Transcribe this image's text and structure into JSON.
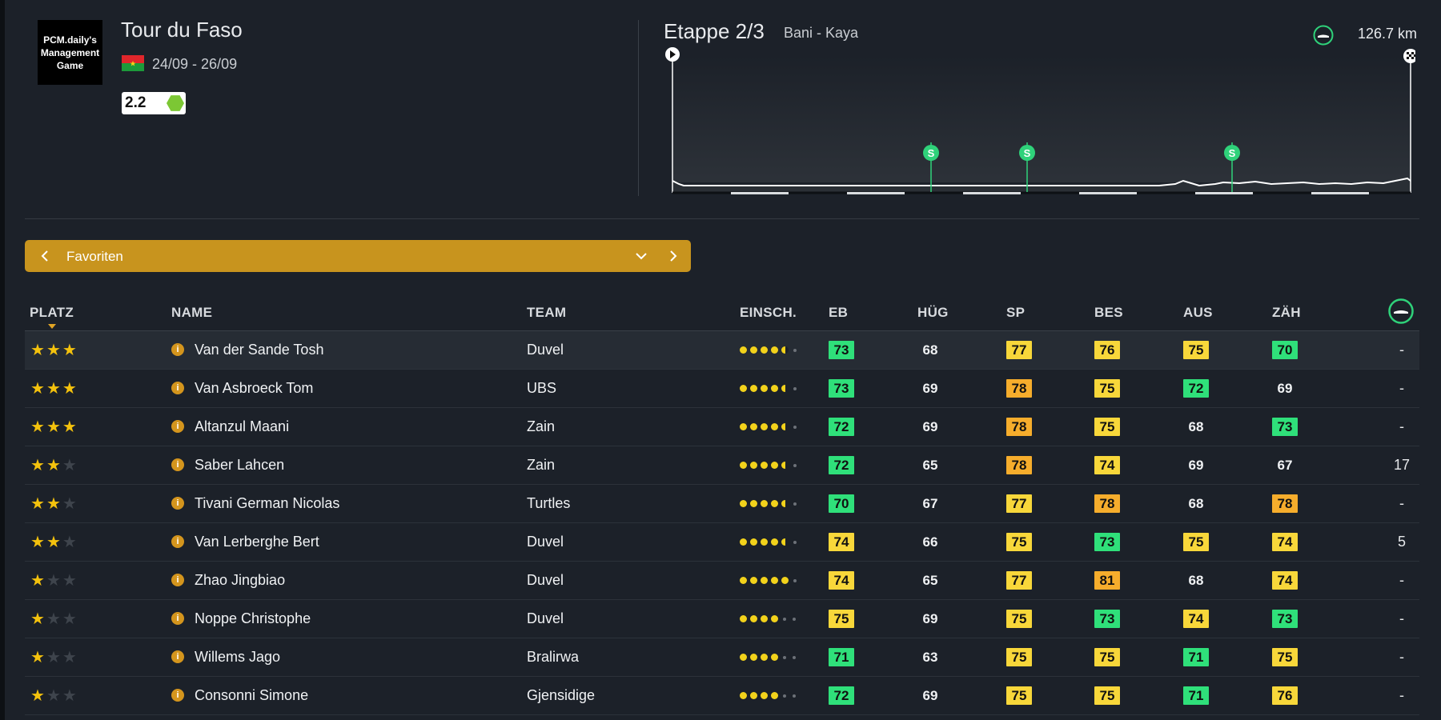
{
  "race": {
    "logo_text": "PCM.daily's Management Game",
    "title": "Tour du Faso",
    "dates": "24/09 - 26/09",
    "category": "2.2"
  },
  "stage": {
    "title": "Etappe 2/3",
    "route": "Bani - Kaya",
    "distance": "126.7 km",
    "type_icon": "flat-stage-icon",
    "sprint_marker": "S"
  },
  "filter": {
    "label": "Favoriten"
  },
  "table": {
    "headers": {
      "platz": "PLATZ",
      "name": "NAME",
      "team": "TEAM",
      "einsch": "EINSCH.",
      "eb": "EB",
      "hug": "HÜG",
      "sp": "SP",
      "bes": "BES",
      "aus": "AUS",
      "zah": "ZÄH"
    },
    "info_glyph": "i",
    "rows": [
      {
        "stars": 3,
        "name": "Van der Sande Tosh",
        "team": "Duvel",
        "dots": 4.5,
        "eb": "73",
        "hug": "68",
        "sp": "77",
        "bes": "76",
        "aus": "75",
        "zah": "70",
        "rank": "-"
      },
      {
        "stars": 3,
        "name": "Van Asbroeck Tom",
        "team": "UBS",
        "dots": 4.5,
        "eb": "73",
        "hug": "69",
        "sp": "78",
        "bes": "75",
        "aus": "72",
        "zah": "69",
        "rank": "-"
      },
      {
        "stars": 3,
        "name": "Altanzul Maani",
        "team": "Zain",
        "dots": 4.5,
        "eb": "72",
        "hug": "69",
        "sp": "78",
        "bes": "75",
        "aus": "68",
        "zah": "73",
        "rank": "-"
      },
      {
        "stars": 2,
        "name": "Saber Lahcen",
        "team": "Zain",
        "dots": 4.5,
        "eb": "72",
        "hug": "65",
        "sp": "78",
        "bes": "74",
        "aus": "69",
        "zah": "67",
        "rank": "17"
      },
      {
        "stars": 2,
        "name": "Tivani German Nicolas",
        "team": "Turtles",
        "dots": 4.5,
        "eb": "70",
        "hug": "67",
        "sp": "77",
        "bes": "78",
        "aus": "68",
        "zah": "78",
        "rank": "-"
      },
      {
        "stars": 2,
        "name": "Van Lerberghe Bert",
        "team": "Duvel",
        "dots": 4.5,
        "eb": "74",
        "hug": "66",
        "sp": "75",
        "bes": "73",
        "aus": "75",
        "zah": "74",
        "rank": "5"
      },
      {
        "stars": 1,
        "name": "Zhao Jingbiao",
        "team": "Duvel",
        "dots": 5,
        "eb": "74",
        "hug": "65",
        "sp": "77",
        "bes": "81",
        "aus": "68",
        "zah": "74",
        "rank": "-"
      },
      {
        "stars": 1,
        "name": "Noppe Christophe",
        "team": "Duvel",
        "dots": 4,
        "eb": "75",
        "hug": "69",
        "sp": "75",
        "bes": "73",
        "aus": "74",
        "zah": "73",
        "rank": "-"
      },
      {
        "stars": 1,
        "name": "Willems Jago",
        "team": "Bralirwa",
        "dots": 4,
        "eb": "71",
        "hug": "63",
        "sp": "75",
        "bes": "75",
        "aus": "71",
        "zah": "75",
        "rank": "-"
      },
      {
        "stars": 1,
        "name": "Consonni Simone",
        "team": "Gjensidige",
        "dots": 4,
        "eb": "72",
        "hug": "69",
        "sp": "75",
        "bes": "75",
        "aus": "71",
        "zah": "76",
        "rank": "-"
      }
    ]
  },
  "colors": {
    "green": "#2fe07a",
    "yellow": "#f8d73a",
    "orange": "#f6ad2c",
    "accent": "#c8941e"
  }
}
